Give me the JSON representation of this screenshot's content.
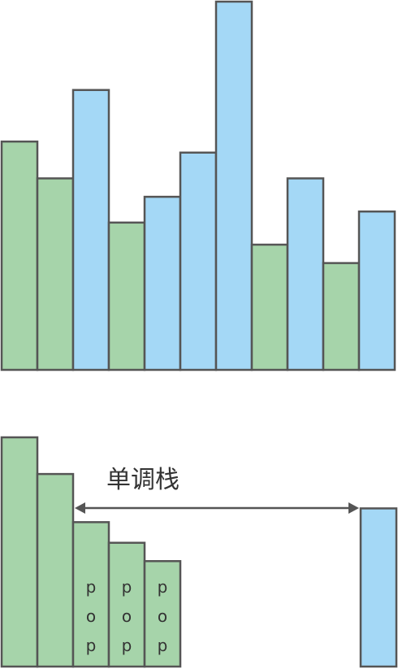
{
  "colors": {
    "green": "#a6d4aa",
    "blue": "#a4d8f6",
    "stroke": "#555555",
    "arrow": "#555555"
  },
  "top_bars": [
    {
      "height": 0.62,
      "color": "green"
    },
    {
      "height": 0.52,
      "color": "green"
    },
    {
      "height": 0.76,
      "color": "blue"
    },
    {
      "height": 0.4,
      "color": "green"
    },
    {
      "height": 0.47,
      "color": "blue"
    },
    {
      "height": 0.59,
      "color": "blue"
    },
    {
      "height": 1.0,
      "color": "blue"
    },
    {
      "height": 0.34,
      "color": "green"
    },
    {
      "height": 0.52,
      "color": "blue"
    },
    {
      "height": 0.29,
      "color": "green"
    },
    {
      "height": 0.43,
      "color": "blue"
    }
  ],
  "bottom": {
    "label": "单调栈",
    "stack_bars": [
      {
        "height": 1.0,
        "color": "green",
        "popped": false
      },
      {
        "height": 0.84,
        "color": "green",
        "popped": false
      },
      {
        "height": 0.63,
        "color": "green",
        "popped": true
      },
      {
        "height": 0.54,
        "color": "green",
        "popped": true
      },
      {
        "height": 0.46,
        "color": "green",
        "popped": true
      }
    ],
    "incoming_bar": {
      "height": 0.69,
      "color": "blue"
    },
    "pop_letters": [
      "p",
      "o",
      "p"
    ]
  }
}
